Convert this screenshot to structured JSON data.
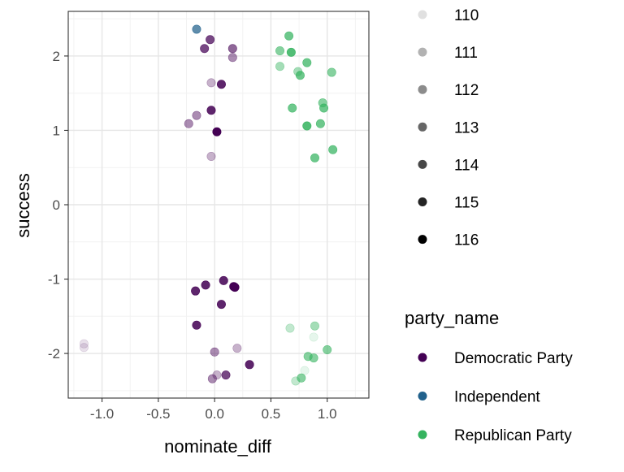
{
  "chart_data": {
    "type": "scatter",
    "xlabel": "nominate_diff",
    "ylabel": "success",
    "xlim": [
      -1.3,
      1.37
    ],
    "ylim": [
      -2.6,
      2.6
    ],
    "x_ticks": [
      -1.0,
      -0.5,
      0.0,
      0.5,
      1.0
    ],
    "x_tick_labels": [
      "-1.0",
      "-0.5",
      "0.0",
      "0.5",
      "1.0"
    ],
    "y_ticks": [
      -2,
      -1,
      0,
      1,
      2
    ],
    "y_tick_labels": [
      "-2",
      "-1",
      "0",
      "1",
      "2"
    ],
    "grid": true,
    "legend_position": "right",
    "congress_legend": {
      "entries": [
        {
          "label": "110",
          "opacity": 0.12
        },
        {
          "label": "111",
          "opacity": 0.3
        },
        {
          "label": "112",
          "opacity": 0.45
        },
        {
          "label": "113",
          "opacity": 0.6
        },
        {
          "label": "114",
          "opacity": 0.72
        },
        {
          "label": "115",
          "opacity": 0.86
        },
        {
          "label": "116",
          "opacity": 1.0
        }
      ]
    },
    "party_legend": {
      "title": "party_name",
      "entries": [
        {
          "label": "Democratic Party",
          "color": "#440154"
        },
        {
          "label": "Independent",
          "color": "#21618C"
        },
        {
          "label": "Republican Party",
          "color": "#35B35F"
        }
      ]
    },
    "points": [
      {
        "x": -0.16,
        "y": 2.36,
        "party": "Independent",
        "congress": "114"
      },
      {
        "x": -0.04,
        "y": 2.22,
        "party": "Democratic Party",
        "congress": "114"
      },
      {
        "x": -0.09,
        "y": 2.1,
        "party": "Democratic Party",
        "congress": "114"
      },
      {
        "x": 0.16,
        "y": 2.1,
        "party": "Democratic Party",
        "congress": "113"
      },
      {
        "x": 0.16,
        "y": 1.98,
        "party": "Democratic Party",
        "congress": "112"
      },
      {
        "x": -0.03,
        "y": 1.64,
        "party": "Democratic Party",
        "congress": "111"
      },
      {
        "x": 0.06,
        "y": 1.62,
        "party": "Democratic Party",
        "congress": "115"
      },
      {
        "x": -0.03,
        "y": 1.27,
        "party": "Democratic Party",
        "congress": "115"
      },
      {
        "x": -0.16,
        "y": 1.2,
        "party": "Democratic Party",
        "congress": "112"
      },
      {
        "x": -0.23,
        "y": 1.09,
        "party": "Democratic Party",
        "congress": "112"
      },
      {
        "x": 0.02,
        "y": 0.98,
        "party": "Democratic Party",
        "congress": "116"
      },
      {
        "x": -0.03,
        "y": 0.65,
        "party": "Democratic Party",
        "congress": "111"
      },
      {
        "x": 0.66,
        "y": 2.27,
        "party": "Republican Party",
        "congress": "114"
      },
      {
        "x": 0.58,
        "y": 2.07,
        "party": "Republican Party",
        "congress": "113"
      },
      {
        "x": 0.68,
        "y": 2.05,
        "party": "Republican Party",
        "congress": "115"
      },
      {
        "x": 0.82,
        "y": 1.91,
        "party": "Republican Party",
        "congress": "114"
      },
      {
        "x": 0.58,
        "y": 1.86,
        "party": "Republican Party",
        "congress": "112"
      },
      {
        "x": 0.74,
        "y": 1.79,
        "party": "Republican Party",
        "congress": "112"
      },
      {
        "x": 0.76,
        "y": 1.74,
        "party": "Republican Party",
        "congress": "114"
      },
      {
        "x": 1.04,
        "y": 1.78,
        "party": "Republican Party",
        "congress": "113"
      },
      {
        "x": 0.96,
        "y": 1.37,
        "party": "Republican Party",
        "congress": "113"
      },
      {
        "x": 0.69,
        "y": 1.3,
        "party": "Republican Party",
        "congress": "114"
      },
      {
        "x": 0.97,
        "y": 1.3,
        "party": "Republican Party",
        "congress": "114"
      },
      {
        "x": 0.94,
        "y": 1.09,
        "party": "Republican Party",
        "congress": "114"
      },
      {
        "x": 0.82,
        "y": 1.06,
        "party": "Republican Party",
        "congress": "115"
      },
      {
        "x": 1.05,
        "y": 0.74,
        "party": "Republican Party",
        "congress": "114"
      },
      {
        "x": 0.89,
        "y": 0.63,
        "party": "Republican Party",
        "congress": "114"
      },
      {
        "x": 0.08,
        "y": -1.02,
        "party": "Democratic Party",
        "congress": "115"
      },
      {
        "x": -0.08,
        "y": -1.08,
        "party": "Democratic Party",
        "congress": "115"
      },
      {
        "x": 0.17,
        "y": -1.1,
        "party": "Democratic Party",
        "congress": "116"
      },
      {
        "x": 0.18,
        "y": -1.11,
        "party": "Democratic Party",
        "congress": "116"
      },
      {
        "x": -0.17,
        "y": -1.16,
        "party": "Democratic Party",
        "congress": "115"
      },
      {
        "x": 0.06,
        "y": -1.34,
        "party": "Democratic Party",
        "congress": "115"
      },
      {
        "x": -0.16,
        "y": -1.62,
        "party": "Democratic Party",
        "congress": "115"
      },
      {
        "x": 0.0,
        "y": -1.98,
        "party": "Democratic Party",
        "congress": "112"
      },
      {
        "x": 0.2,
        "y": -1.93,
        "party": "Democratic Party",
        "congress": "111"
      },
      {
        "x": 0.31,
        "y": -2.15,
        "party": "Democratic Party",
        "congress": "115"
      },
      {
        "x": 0.02,
        "y": -2.29,
        "party": "Democratic Party",
        "congress": "111"
      },
      {
        "x": 0.1,
        "y": -2.29,
        "party": "Democratic Party",
        "congress": "114"
      },
      {
        "x": -0.02,
        "y": -2.34,
        "party": "Democratic Party",
        "congress": "112"
      },
      {
        "x": -1.16,
        "y": -1.87,
        "party": "Democratic Party",
        "congress": "110"
      },
      {
        "x": -1.16,
        "y": -1.92,
        "party": "Democratic Party",
        "congress": "110"
      },
      {
        "x": 0.67,
        "y": -1.66,
        "party": "Republican Party",
        "congress": "111"
      },
      {
        "x": 0.89,
        "y": -1.63,
        "party": "Republican Party",
        "congress": "112"
      },
      {
        "x": 0.88,
        "y": -1.78,
        "party": "Republican Party",
        "congress": "110"
      },
      {
        "x": 1.0,
        "y": -1.95,
        "party": "Republican Party",
        "congress": "113"
      },
      {
        "x": 0.83,
        "y": -2.04,
        "party": "Republican Party",
        "congress": "113"
      },
      {
        "x": 0.88,
        "y": -2.06,
        "party": "Republican Party",
        "congress": "113"
      },
      {
        "x": 0.8,
        "y": -2.23,
        "party": "Republican Party",
        "congress": "110"
      },
      {
        "x": 0.77,
        "y": -2.33,
        "party": "Republican Party",
        "congress": "113"
      },
      {
        "x": 0.72,
        "y": -2.37,
        "party": "Republican Party",
        "congress": "111"
      }
    ]
  }
}
